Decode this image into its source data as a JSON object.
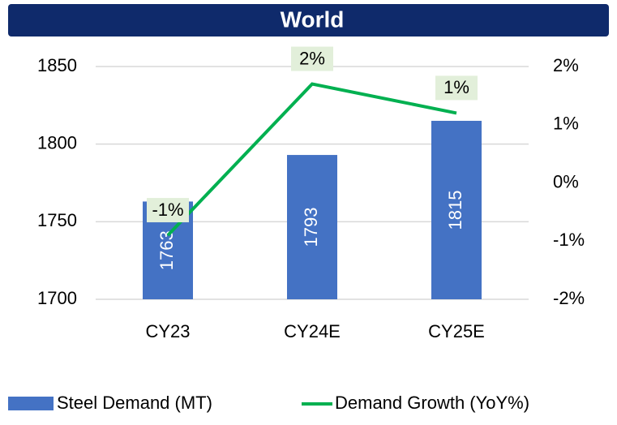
{
  "chart_data": {
    "type": "bar",
    "title": "World",
    "categories": [
      "CY23",
      "CY24E",
      "CY25E"
    ],
    "series": [
      {
        "name": "Steel Demand (MT)",
        "type": "bar",
        "color": "#4472c4",
        "values": [
          1763,
          1793,
          1815
        ]
      },
      {
        "name": "Demand Growth (YoY%)",
        "type": "line",
        "axis": "y2",
        "color": "#00b050",
        "values": [
          -0.9,
          1.7,
          1.2
        ],
        "value_labels": [
          "-1%",
          "2%",
          "1%"
        ]
      }
    ],
    "ylim": [
      1700,
      1850
    ],
    "yticks": [
      1700,
      1750,
      1800,
      1850
    ],
    "y2lim": [
      -2,
      2
    ],
    "y2ticks": [
      {
        "value": -2,
        "label": "-2%"
      },
      {
        "value": -1,
        "label": "-1%"
      },
      {
        "value": 0,
        "label": "0%"
      },
      {
        "value": 1,
        "label": "1%"
      },
      {
        "value": 2,
        "label": "2%"
      }
    ],
    "grid": true,
    "legend": "bottom"
  }
}
